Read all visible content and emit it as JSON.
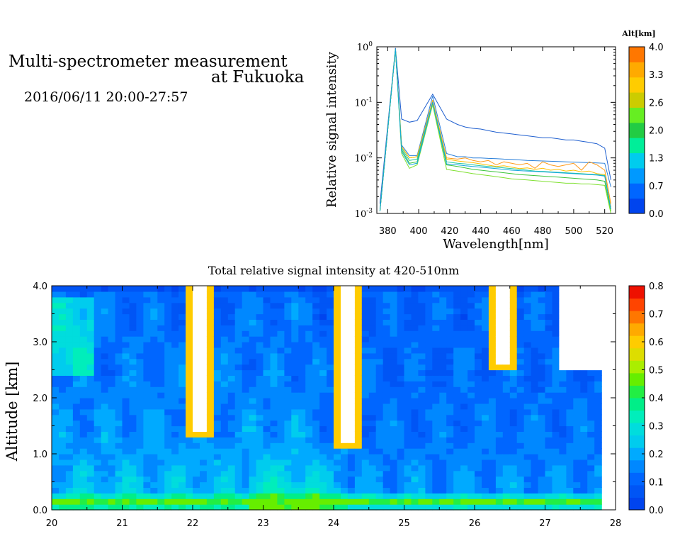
{
  "header": {
    "title_line1": "Multi-spectrometer measurement",
    "title_line2": "at Fukuoka",
    "datetime": "2016/06/11 20:00-27:57"
  },
  "chart_data": [
    {
      "type": "line",
      "title": "",
      "xlabel": "Wavelength[nm]",
      "ylabel": "Relative signal intensity",
      "xlim": [
        373,
        527
      ],
      "ylim": [
        0.001,
        1
      ],
      "yscale": "log",
      "x_ticks": [
        380,
        400,
        420,
        440,
        460,
        480,
        500,
        520
      ],
      "y_tick_labels": [
        "10^-3",
        "10^-2",
        "10^-1",
        "10^0"
      ],
      "legend_title": "Alt[km]",
      "colorbar_ticks": [
        "4.0",
        "3.3",
        "2.6",
        "2.0",
        "1.3",
        "0.7",
        "0.0"
      ],
      "colorbar_colors": [
        "#0044ee",
        "#0066ff",
        "#0099ff",
        "#00ccee",
        "#00ee99",
        "#22cc44",
        "#66ee22",
        "#cccc00",
        "#ffcc00",
        "#ffaa00",
        "#ff7700"
      ],
      "x": [
        375,
        385,
        389,
        394,
        399,
        409,
        418,
        425,
        430,
        435,
        440,
        445,
        450,
        455,
        460,
        465,
        470,
        475,
        480,
        485,
        490,
        495,
        500,
        505,
        510,
        515,
        520,
        524
      ],
      "series": [
        {
          "color": "#1f5fcf",
          "values": [
            0.0015,
            0.95,
            0.05,
            0.044,
            0.047,
            0.14,
            0.05,
            0.04,
            0.036,
            0.034,
            0.033,
            0.031,
            0.029,
            0.028,
            0.027,
            0.026,
            0.025,
            0.024,
            0.023,
            0.023,
            0.022,
            0.021,
            0.021,
            0.02,
            0.019,
            0.018,
            0.015,
            0.004
          ]
        },
        {
          "color": "#2a7fd9",
          "values": [
            0.0012,
            0.93,
            0.017,
            0.011,
            0.011,
            0.13,
            0.012,
            0.0105,
            0.0105,
            0.01,
            0.01,
            0.0098,
            0.0097,
            0.0095,
            0.0094,
            0.0092,
            0.009,
            0.0089,
            0.0088,
            0.0087,
            0.0086,
            0.0085,
            0.0084,
            0.0083,
            0.0082,
            0.0081,
            0.008,
            0.003
          ]
        },
        {
          "color": "#ff9a1a",
          "values": [
            0.0011,
            0.9,
            0.016,
            0.01,
            0.0105,
            0.11,
            0.01,
            0.0095,
            0.01,
            0.009,
            0.0085,
            0.009,
            0.0075,
            0.0085,
            0.008,
            0.0075,
            0.008,
            0.0065,
            0.0085,
            0.0075,
            0.007,
            0.0075,
            0.008,
            0.006,
            0.0085,
            0.0075,
            0.006,
            0.0015
          ]
        },
        {
          "color": "#ffc000",
          "values": [
            0.0011,
            0.9,
            0.016,
            0.01,
            0.0105,
            0.105,
            0.0095,
            0.0088,
            0.0085,
            0.0082,
            0.0078,
            0.0074,
            0.007,
            0.0072,
            0.0068,
            0.0064,
            0.0066,
            0.0062,
            0.0065,
            0.006,
            0.0062,
            0.0058,
            0.006,
            0.0056,
            0.0058,
            0.0052,
            0.005,
            0.0013
          ]
        },
        {
          "color": "#22c7a0",
          "values": [
            0.0011,
            0.9,
            0.015,
            0.009,
            0.0095,
            0.1,
            0.0085,
            0.008,
            0.0078,
            0.0075,
            0.0072,
            0.007,
            0.0068,
            0.0066,
            0.0064,
            0.0062,
            0.006,
            0.0058,
            0.0057,
            0.0056,
            0.0055,
            0.0054,
            0.0053,
            0.0052,
            0.0051,
            0.005,
            0.0048,
            0.0012
          ]
        },
        {
          "color": "#3ac43a",
          "values": [
            0.0011,
            0.9,
            0.014,
            0.008,
            0.0085,
            0.095,
            0.0075,
            0.007,
            0.0066,
            0.0062,
            0.006,
            0.0058,
            0.0056,
            0.0054,
            0.0052,
            0.005,
            0.0049,
            0.0048,
            0.0047,
            0.0046,
            0.0045,
            0.0044,
            0.0043,
            0.0042,
            0.0041,
            0.004,
            0.0038,
            0.0011
          ]
        },
        {
          "color": "#7fe030",
          "values": [
            0.0011,
            0.9,
            0.012,
            0.0065,
            0.0075,
            0.09,
            0.0062,
            0.0058,
            0.0055,
            0.0052,
            0.005,
            0.0048,
            0.0046,
            0.0044,
            0.0042,
            0.0041,
            0.004,
            0.0039,
            0.0038,
            0.0037,
            0.0036,
            0.0035,
            0.0035,
            0.0034,
            0.0034,
            0.0033,
            0.0032,
            0.001
          ]
        },
        {
          "color": "#11a8dd",
          "values": [
            0.0011,
            0.9,
            0.013,
            0.0075,
            0.008,
            0.1,
            0.0078,
            0.0075,
            0.0072,
            0.007,
            0.0068,
            0.0066,
            0.0064,
            0.0062,
            0.006,
            0.0059,
            0.0058,
            0.0057,
            0.0056,
            0.0055,
            0.0054,
            0.0053,
            0.0052,
            0.0051,
            0.005,
            0.0049,
            0.0047,
            0.0012
          ]
        }
      ]
    },
    {
      "type": "heatmap",
      "title": "Total relative signal intensity at 420-510nm",
      "xlabel": "",
      "ylabel": "Altitude [km]",
      "xlim": [
        20,
        28
      ],
      "ylim": [
        0,
        4
      ],
      "x_ticks": [
        "20",
        "21",
        "22",
        "23",
        "24",
        "25",
        "26",
        "27",
        "28"
      ],
      "y_ticks": [
        "0.0",
        "1.0",
        "2.0",
        "3.0",
        "4.0"
      ],
      "data_x_range": [
        20,
        27.8
      ],
      "colorbar_ticks": [
        "0.8",
        "0.7",
        "0.6",
        "0.5",
        "0.4",
        "0.3",
        "0.2",
        "0.1",
        "0.0"
      ],
      "colorbar_range": [
        0,
        0.8
      ],
      "colorbar_colors": [
        "#0044ee",
        "#0055f5",
        "#0066ff",
        "#0088ff",
        "#00aaff",
        "#00ccee",
        "#00dddd",
        "#00eebb",
        "#00ee88",
        "#22ee44",
        "#66ee00",
        "#aaee00",
        "#dddd00",
        "#ffcc00",
        "#ffaa00",
        "#ff7700",
        "#ff4400",
        "#ee1100"
      ],
      "features": {
        "background_value_low_altitude": 0.2,
        "background_value_high_altitude": 0.1,
        "surface_layer_value": 0.45,
        "surface_layer_altitude_km": 0.15,
        "clouds": [
          {
            "time": 22.1,
            "top_km": 4.0,
            "bottom_km": 1.4,
            "peak": 0.9
          },
          {
            "time": 24.2,
            "top_km": 4.0,
            "bottom_km": 1.2,
            "peak": 0.9
          },
          {
            "time": 26.4,
            "top_km": 4.0,
            "bottom_km": 2.6,
            "peak": 0.9
          },
          {
            "time": 27.5,
            "top_km": 4.0,
            "bottom_km": 2.55,
            "peak": 0.9
          }
        ]
      }
    }
  ]
}
